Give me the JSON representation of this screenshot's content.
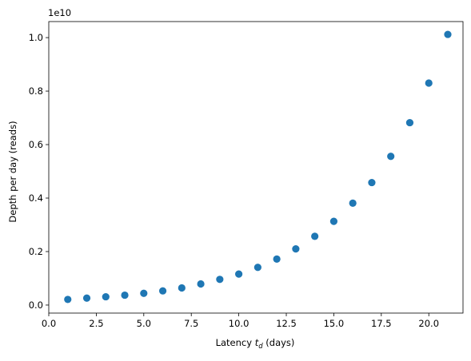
{
  "chart_data": {
    "type": "scatter",
    "xlabel_prefix": "Latency ",
    "xlabel_symbol": "t",
    "xlabel_subscript": "d",
    "xlabel_suffix": " (days)",
    "ylabel": "Depth per day (reads)",
    "y_offset_text": "1e10",
    "xlim": [
      0,
      21.8
    ],
    "ylim": [
      -0.03,
      1.06
    ],
    "y_scale_factor": 10000000000,
    "grid": false,
    "legend": "none",
    "marker_color": "#1f77b4",
    "x_ticks": [
      0,
      2.5,
      5,
      7.5,
      10,
      12.5,
      15,
      17.5,
      20
    ],
    "x_tick_labels": [
      "0.0",
      "2.5",
      "5.0",
      "7.5",
      "10.0",
      "12.5",
      "15.0",
      "17.5",
      "20.0"
    ],
    "y_ticks": [
      0,
      0.2,
      0.4,
      0.6,
      0.8,
      1.0
    ],
    "y_tick_labels": [
      "0.0",
      "0.2",
      "0.4",
      "0.6",
      "0.8",
      "1.0"
    ],
    "series": [
      {
        "x": [
          1,
          2,
          3,
          4,
          5,
          6,
          7,
          8,
          9,
          10,
          11,
          12,
          13,
          14,
          15,
          16,
          17,
          18,
          19,
          20,
          21
        ],
        "y": [
          0.021,
          0.026,
          0.031,
          0.037,
          0.044,
          0.053,
          0.064,
          0.079,
          0.096,
          0.116,
          0.141,
          0.172,
          0.21,
          0.257,
          0.313,
          0.381,
          0.458,
          0.556,
          0.682,
          0.83,
          1.012
        ]
      }
    ]
  }
}
